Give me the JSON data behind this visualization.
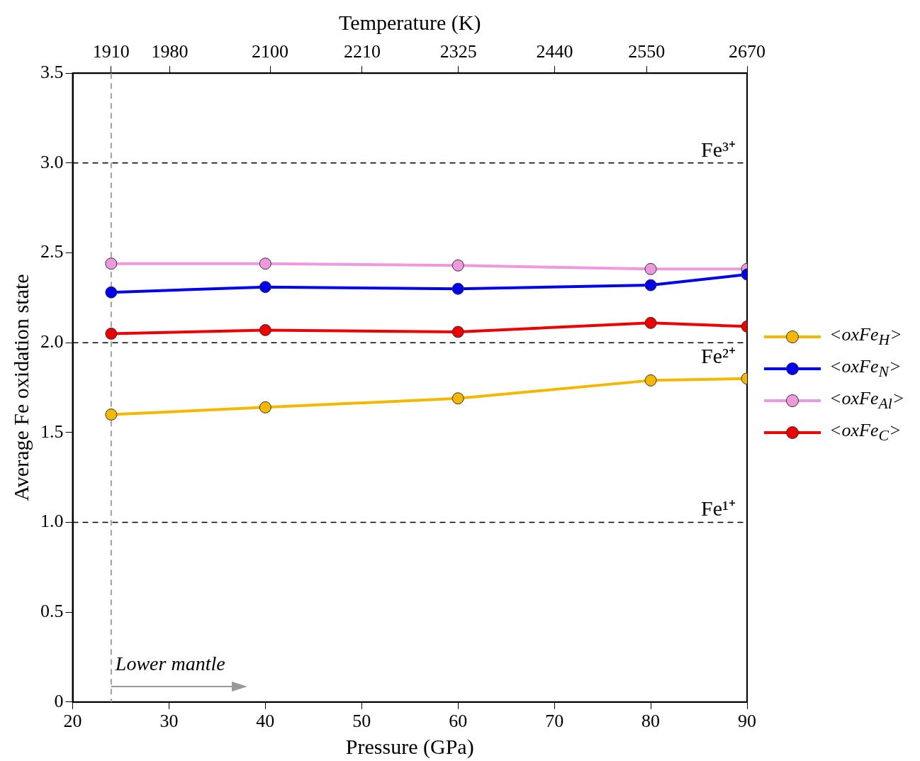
{
  "chart_data": {
    "type": "line",
    "xlabel": "Pressure (GPa)",
    "ylabel": "Average Fe oxidation state",
    "x2label": "Temperature (K)",
    "x": [
      24,
      40,
      60,
      80,
      90
    ],
    "xlim": [
      20,
      90
    ],
    "xticks": [
      20,
      30,
      40,
      50,
      60,
      70,
      80,
      90
    ],
    "x2lim": [
      1864,
      2670
    ],
    "x2ticks": [
      1910,
      1980,
      2100,
      2210,
      2325,
      2440,
      2550,
      2670
    ],
    "ylim": [
      0,
      3.5
    ],
    "yticks": [
      {
        "value": 0,
        "label": "0"
      },
      {
        "value": 0.5,
        "label": "0.5"
      },
      {
        "value": 1,
        "label": "1.0"
      },
      {
        "value": 1.5,
        "label": "1.5"
      },
      {
        "value": 2,
        "label": "2.0"
      },
      {
        "value": 2.5,
        "label": "2.5"
      },
      {
        "value": 3,
        "label": "3.0"
      },
      {
        "value": 3.5,
        "label": "3.5"
      }
    ],
    "series": [
      {
        "name": "<oxFe$_{H}$>",
        "color": "#f5b800",
        "values": [
          1.6,
          1.64,
          1.69,
          1.79,
          1.8
        ]
      },
      {
        "name": "<oxFe$_{N}$>",
        "color": "#0000ee",
        "values": [
          2.28,
          2.31,
          2.3,
          2.32,
          2.38
        ]
      },
      {
        "name": "<oxFe$_{Al}$>",
        "color": "#ee99dd",
        "values": [
          2.44,
          2.44,
          2.43,
          2.41,
          2.41
        ]
      },
      {
        "name": "<oxFe$_{C}$>",
        "color": "#ee0000",
        "values": [
          2.05,
          2.07,
          2.06,
          2.11,
          2.09
        ]
      }
    ],
    "ref_lines": [
      {
        "axis": "y",
        "value": 3,
        "label": "Fe³⁺",
        "color": "#000000",
        "line_style": "dashed"
      },
      {
        "axis": "y",
        "value": 2,
        "label": "Fe²⁺",
        "color": "#000000",
        "line_style": "dashed"
      },
      {
        "axis": "y",
        "value": 1,
        "label": "Fe¹⁺",
        "color": "#000000",
        "line_style": "dashed"
      },
      {
        "axis": "x",
        "value": 24,
        "color": "#a0a0a0",
        "line_style": "dashed"
      }
    ],
    "annotations": [
      {
        "text": "Lower mantle",
        "x": 24,
        "y": 0.15
      }
    ],
    "marker": "circle",
    "line_style": "solid",
    "grid": false,
    "legend": "right"
  }
}
